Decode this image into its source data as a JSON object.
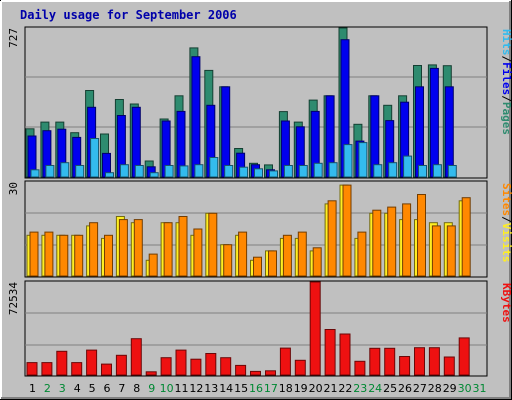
{
  "chart_data": {
    "type": "bar",
    "title": "Daily usage for September 2006",
    "categories": [
      "1",
      "2",
      "3",
      "4",
      "5",
      "6",
      "7",
      "8",
      "9",
      "10",
      "11",
      "12",
      "13",
      "14",
      "15",
      "16",
      "17",
      "18",
      "19",
      "20",
      "21",
      "22",
      "23",
      "24",
      "25",
      "26",
      "27",
      "28",
      "29",
      "30",
      "31"
    ],
    "weekend_days": [
      2,
      3,
      9,
      10,
      16,
      17,
      23,
      24,
      30,
      31
    ],
    "colors": {
      "hits": "#2e8b6f",
      "files": "#0000ee",
      "pages": "#33bbee",
      "visits": "#ffee22",
      "sites": "#ff8800",
      "kbytes": "#ee1111",
      "weekday_label": "#000000",
      "weekend_label": "#008833",
      "plot_bg": "#c0c0c0"
    },
    "panels": [
      {
        "name": "hits-files-pages",
        "y_max_label": "727",
        "ylim": [
          0,
          727
        ],
        "legend": [
          "Hits",
          "/",
          "Files",
          "/",
          "Pages"
        ],
        "series": [
          {
            "name": "Hits",
            "values": [
              235,
              268,
              268,
              216,
              422,
              210,
              378,
              356,
              78,
              283,
              396,
              630,
              520,
              440,
              139,
              67,
              59,
              319,
              268,
              375,
              396,
              727,
              257,
              396,
              350,
              396,
              544,
              547,
              543,
              0,
              0
            ]
          },
          {
            "name": "Files",
            "values": [
              200,
              226,
              233,
              193,
              340,
              115,
              300,
              340,
              50,
              273,
              320,
              587,
              350,
              440,
              116,
              60,
              35,
              273,
              245,
              320,
              396,
              670,
              175,
              396,
              275,
              365,
              440,
              530,
              440,
              0,
              0
            ]
          },
          {
            "name": "Pages",
            "values": [
              35,
              56,
              70,
              56,
              188,
              21,
              60,
              56,
              21,
              56,
              54,
              60,
              95,
              56,
              48,
              40,
              30,
              56,
              56,
              67,
              70,
              158,
              168,
              60,
              70,
              102,
              56,
              60,
              56,
              0,
              0
            ]
          }
        ]
      },
      {
        "name": "visits-sites",
        "y_max_label": "30",
        "ylim": [
          0,
          30
        ],
        "legend": [
          "Sites",
          "/",
          "Visits"
        ],
        "series": [
          {
            "name": "Visits",
            "values": [
              13,
              13,
              13,
              13,
              16,
              12,
              19,
              17,
              5,
              17,
              17,
              13,
              20,
              10,
              13,
              5,
              8,
              12,
              12,
              8,
              23,
              29,
              12,
              20,
              20,
              18,
              18,
              17,
              17,
              24,
              0
            ]
          },
          {
            "name": "Sites",
            "values": [
              14,
              14,
              13,
              13,
              17,
              13,
              18,
              18,
              7,
              17,
              19,
              15,
              20,
              10,
              14,
              6,
              8,
              13,
              14,
              9,
              24,
              29,
              14,
              21,
              22,
              23,
              26,
              16,
              16,
              25,
              0
            ]
          }
        ]
      },
      {
        "name": "kbytes",
        "y_max_label": "72534",
        "ylim": [
          0,
          72534
        ],
        "legend": [
          "KBytes"
        ],
        "series": [
          {
            "name": "KBytes",
            "values": [
              9700,
              9700,
              18500,
              9700,
              19400,
              8500,
              15400,
              28300,
              2500,
              13500,
              19400,
              12300,
              16800,
              13500,
              7500,
              2800,
              3300,
              21000,
              11500,
              72534,
              35500,
              32000,
              10700,
              20800,
              20800,
              14400,
              21300,
              21300,
              14000,
              28900,
              0
            ]
          }
        ]
      }
    ]
  }
}
